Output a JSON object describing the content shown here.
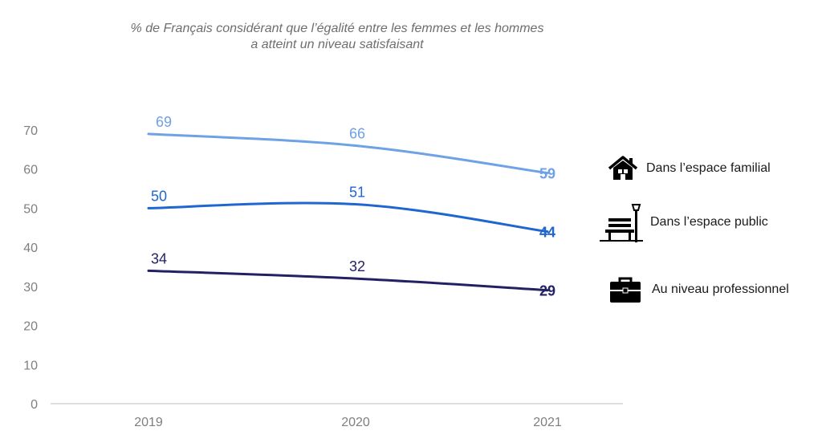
{
  "title_line1": "% de Français considérant que l’égalité entre les femmes et les hommes",
  "title_line2": "a atteint un niveau satisfaisant",
  "chart_data": {
    "type": "line",
    "title": "% de Français considérant que l’égalité entre les femmes et les hommes a atteint un niveau satisfaisant",
    "x": [
      "2019",
      "2020",
      "2021"
    ],
    "ylim": [
      0,
      70
    ],
    "yticks": [
      "0",
      "10",
      "20",
      "30",
      "40",
      "50",
      "60",
      "70"
    ],
    "grid": false,
    "legend_position": "right",
    "series": [
      {
        "name": "Dans l’espace familial",
        "values": [
          69,
          66,
          59
        ],
        "color": "#6fa1e6",
        "icon": "house-icon"
      },
      {
        "name": "Dans l’espace public",
        "values": [
          50,
          51,
          44
        ],
        "color": "#1f66d1",
        "icon": "park-bench-icon"
      },
      {
        "name": "Au niveau professionnel",
        "values": [
          34,
          32,
          29
        ],
        "color": "#232164",
        "icon": "briefcase-icon"
      }
    ]
  }
}
